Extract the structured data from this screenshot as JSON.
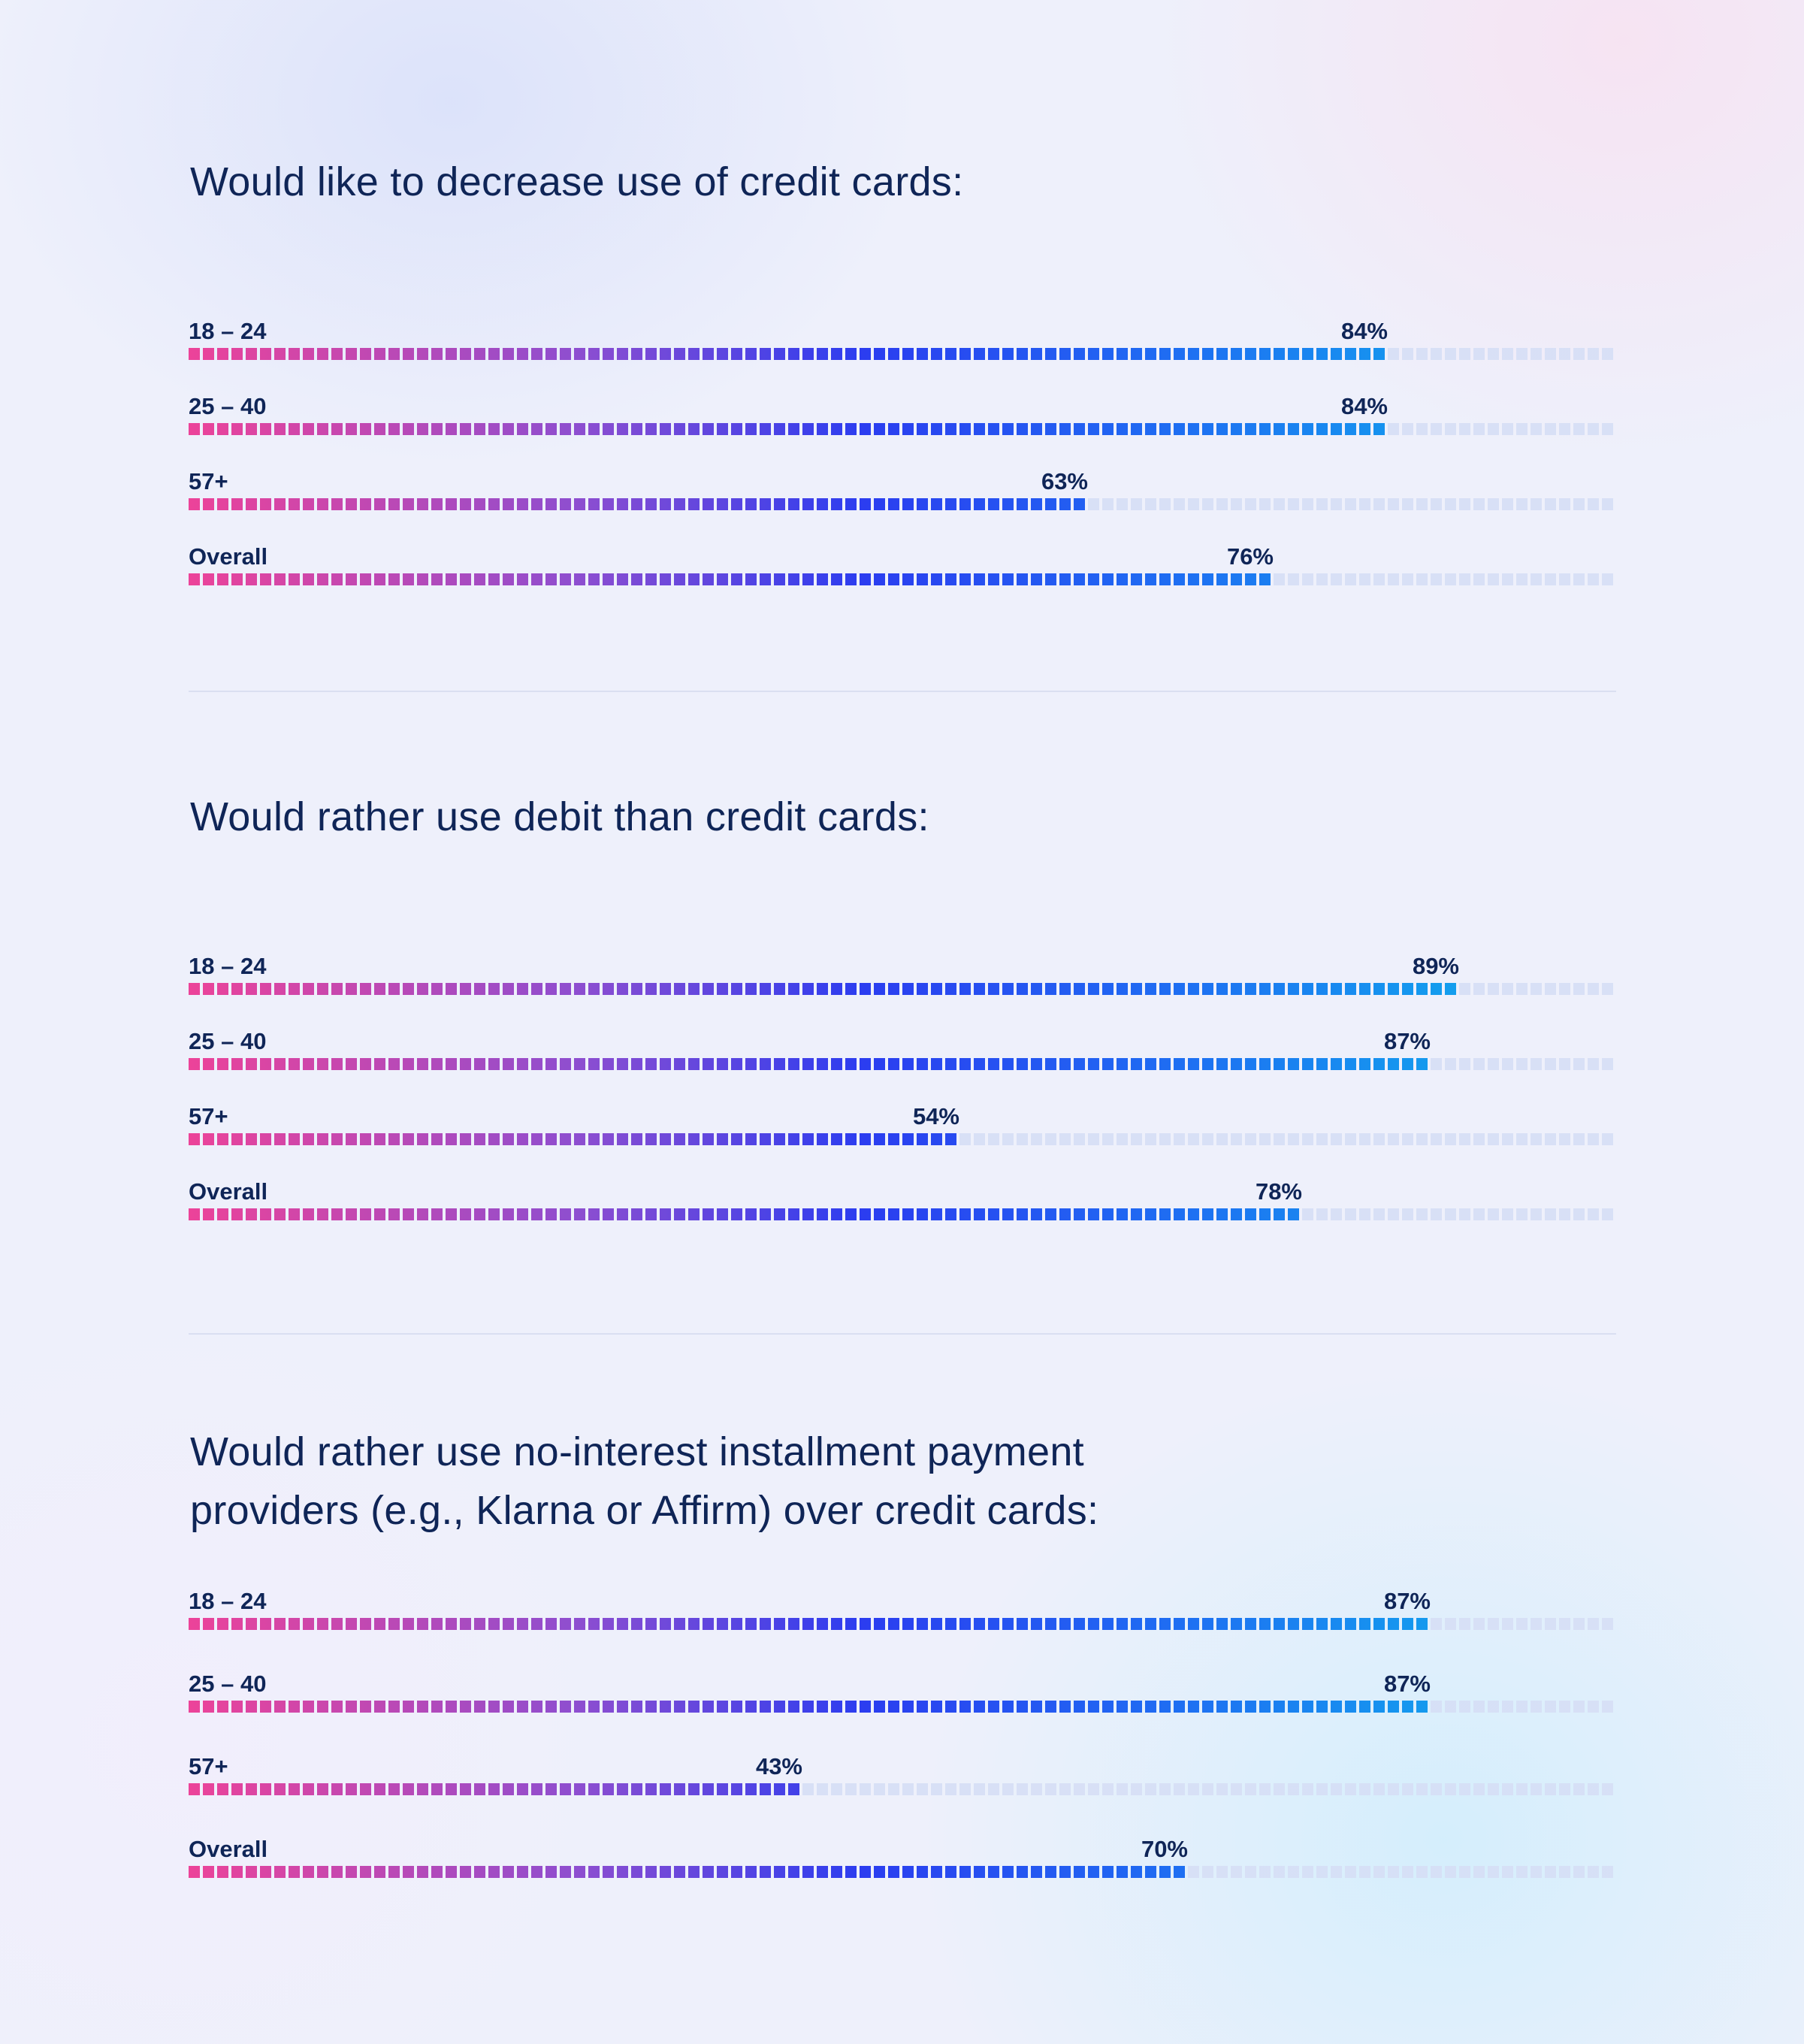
{
  "chart_data": [
    {
      "type": "bar",
      "orientation": "horizontal",
      "title": "Would like to decrease use of credit cards:",
      "categories": [
        "18 – 24",
        "25 – 40",
        "57+",
        "Overall"
      ],
      "values": [
        84,
        84,
        63,
        76
      ],
      "value_labels": [
        "84%",
        "84%",
        "63%",
        "76%"
      ],
      "xlim": [
        0,
        100
      ]
    },
    {
      "type": "bar",
      "orientation": "horizontal",
      "title": "Would rather use debit than credit cards:",
      "categories": [
        "18 – 24",
        "25 – 40",
        "57+",
        "Overall"
      ],
      "values": [
        89,
        87,
        54,
        78
      ],
      "value_labels": [
        "89%",
        "87%",
        "54%",
        "78%"
      ],
      "xlim": [
        0,
        100
      ]
    },
    {
      "type": "bar",
      "orientation": "horizontal",
      "title": "Would rather use no-interest installment  payment providers (e.g., Klarna or Affirm) over credit cards:",
      "title_lines": [
        "Would rather use no-interest installment  payment",
        "providers (e.g., Klarna or Affirm) over credit cards:"
      ],
      "categories": [
        "18 – 24",
        "25 – 40",
        "57+",
        "Overall"
      ],
      "values": [
        87,
        87,
        43,
        70
      ],
      "value_labels": [
        "87%",
        "87%",
        "43%",
        "70%"
      ],
      "xlim": [
        0,
        100
      ]
    }
  ],
  "colors": {
    "gradient_start": "#ec4399",
    "gradient_mid_1": "#8d4ed0",
    "gradient_mid_2": "#2b3df0",
    "gradient_mid_3": "#1f6cf2",
    "gradient_end": "#13a0ee",
    "text": "#0f2557",
    "track": "#d6def6"
  }
}
